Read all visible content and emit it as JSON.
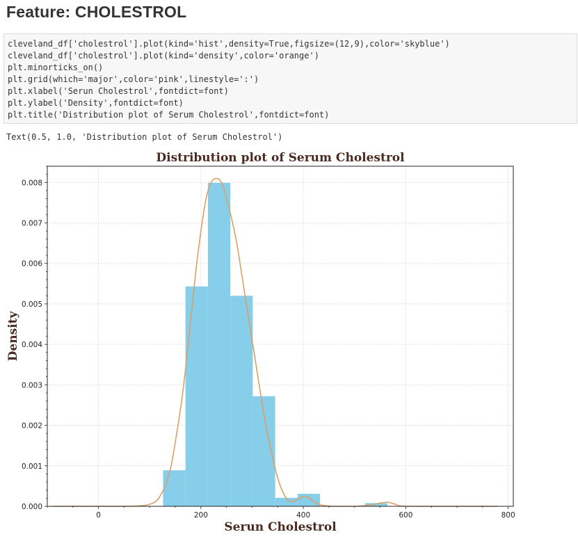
{
  "heading": "Feature: CHOLESTROL",
  "code": {
    "lines": [
      "cleveland_df['cholestrol'].plot(kind='hist',density=True,figsize=(12,9),color='skyblue')",
      "cleveland_df['cholestrol'].plot(kind='density',color='orange')",
      "plt.minorticks_on()",
      "plt.grid(which='major',color='pink',linestyle=':')",
      "plt.xlabel('Serun Cholestrol',fontdict=font)",
      "plt.ylabel('Density',fontdict=font)",
      "plt.title('Distribution plot of Serum Cholestrol',fontdict=font)"
    ]
  },
  "output_text": "Text(0.5, 1.0, 'Distribution plot of Serum Cholestrol')",
  "chart_data": {
    "type": "bar",
    "title": "Distribution plot of Serum Cholestrol",
    "xlabel": "Serun Cholestrol",
    "ylabel": "Density",
    "xlim": [
      -100,
      810
    ],
    "ylim": [
      0,
      0.0084
    ],
    "xticks": [
      0,
      200,
      400,
      600,
      800
    ],
    "yticks": [
      0.0,
      0.001,
      0.002,
      0.003,
      0.004,
      0.005,
      0.006,
      0.007,
      0.008
    ],
    "ytick_labels": [
      "0.000",
      "0.001",
      "0.002",
      "0.003",
      "0.004",
      "0.005",
      "0.006",
      "0.007",
      "0.008"
    ],
    "grid": true,
    "minor_ticks": true,
    "histogram": {
      "color": "#87ceeb",
      "bin_edges": [
        126,
        169.8,
        213.6,
        257.4,
        301.2,
        345,
        388.8,
        432.6,
        476.4,
        520.2,
        564
      ],
      "densities": [
        0.00089,
        0.00543,
        0.00799,
        0.0052,
        0.00272,
        0.00021,
        0.00031,
        0.0,
        0.0,
        8e-05
      ]
    },
    "density": {
      "color": "#d9a067",
      "x": [
        -90,
        0,
        60,
        100,
        120,
        140,
        160,
        170,
        180,
        190,
        200,
        210,
        220,
        230,
        240,
        250,
        260,
        270,
        280,
        290,
        300,
        310,
        320,
        330,
        340,
        350,
        360,
        370,
        380,
        390,
        400,
        410,
        420,
        430,
        440,
        460,
        500,
        530,
        550,
        565,
        580,
        600,
        700,
        780
      ],
      "y": [
        0.0,
        0.0,
        0.0,
        5e-05,
        0.00025,
        0.0009,
        0.0024,
        0.0034,
        0.0046,
        0.0058,
        0.0068,
        0.0076,
        0.008,
        0.0081,
        0.008,
        0.0076,
        0.0071,
        0.0065,
        0.0057,
        0.0049,
        0.0041,
        0.0033,
        0.0025,
        0.0018,
        0.0012,
        0.0007,
        0.00035,
        0.00015,
        0.00012,
        0.00018,
        0.00024,
        0.00022,
        0.00012,
        5e-05,
        2e-05,
        0.0,
        0.0,
        3e-05,
        8e-05,
        0.0001,
        5e-05,
        0.0,
        0.0,
        0.0
      ]
    }
  }
}
